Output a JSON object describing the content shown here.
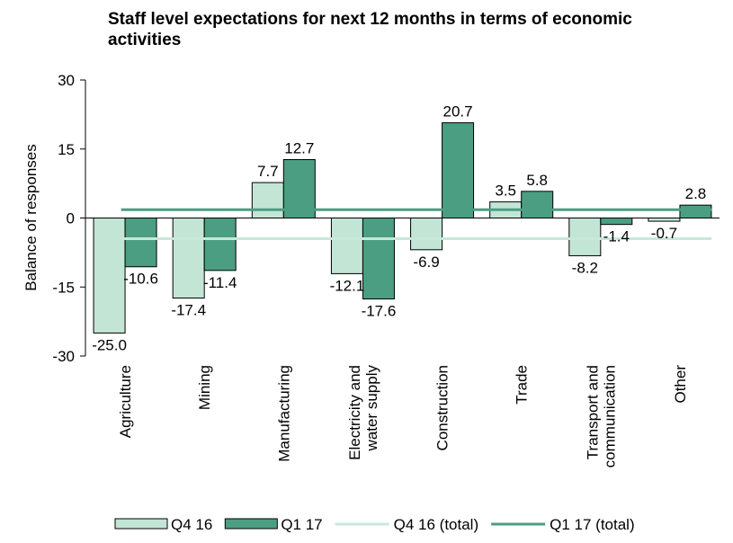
{
  "chart_data": {
    "type": "bar",
    "title": "Staff level expectations for next 12 months in terms of economic activities",
    "y_label": "Balance of responses",
    "categories": [
      "Agriculture",
      "Mining",
      "Manufacturing",
      "Electricity and water supply",
      "Construction",
      "Trade",
      "Transport and communication",
      "Other"
    ],
    "series": [
      {
        "name": "Q4 16",
        "color": "#c3e5d6",
        "values": [
          -25,
          -17.4,
          7.7,
          -12.1,
          -6.9,
          3.5,
          -8.2,
          -0.7
        ],
        "value_labels": [
          "-25.0",
          "-17.4",
          "7.7",
          "-12.1",
          "-6.9",
          "3.5",
          "-8.2",
          "-0.7"
        ]
      },
      {
        "name": "Q1 17",
        "color": "#4b9e82",
        "values": [
          -10.6,
          -11.4,
          12.7,
          -17.6,
          20.7,
          5.8,
          -1.4,
          2.8
        ],
        "value_labels": [
          "-10.6",
          "-11.4",
          "12.7",
          "-17.6",
          "20.7",
          "5.8",
          "-1.4",
          "2.8"
        ]
      }
    ],
    "reference_lines": [
      {
        "name": "Q4 16 (total)",
        "color": "#c8e8da",
        "value": -4.5
      },
      {
        "name": "Q1 17 (total)",
        "color": "#4b9e82",
        "value": 1.8
      }
    ],
    "ylim": [
      -30,
      30
    ],
    "yticks": [
      -30,
      -15,
      0,
      15,
      30
    ],
    "grid": false
  }
}
